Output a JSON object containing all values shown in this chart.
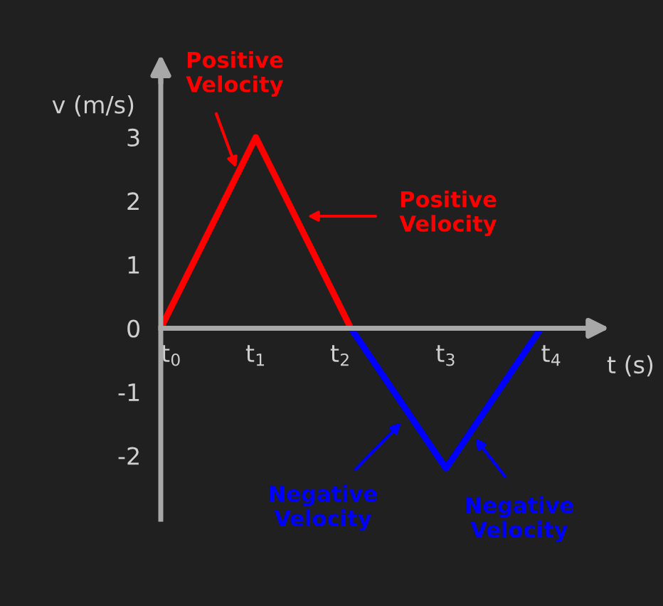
{
  "chart_data": {
    "type": "line",
    "xlabel": "t (s)",
    "ylabel": "v (m/s)",
    "categories": [
      "t$_{0}$",
      "t$_{1}$",
      "t$_{2}$",
      "t$_{3}$",
      "t$_{4}$"
    ],
    "ylim": [
      -3.0,
      4.15
    ],
    "yticks": [
      {
        "value": -2,
        "label": "-2"
      },
      {
        "value": -1,
        "label": "-1"
      },
      0,
      1,
      2,
      3
    ],
    "series": [
      {
        "color": "#ff0000",
        "values": [
          0,
          3,
          0,
          null,
          null
        ]
      },
      {
        "color": "#0000ff",
        "values": [
          null,
          null,
          0,
          -2.2,
          0
        ]
      }
    ],
    "annotations": [
      "Positive\nVelocity",
      "Positive\nVelocity",
      "Negative\nVelocity",
      "Negative\nVelocity"
    ],
    "grid": false,
    "legend": false,
    "marker": "none",
    "line_style": "solid"
  }
}
